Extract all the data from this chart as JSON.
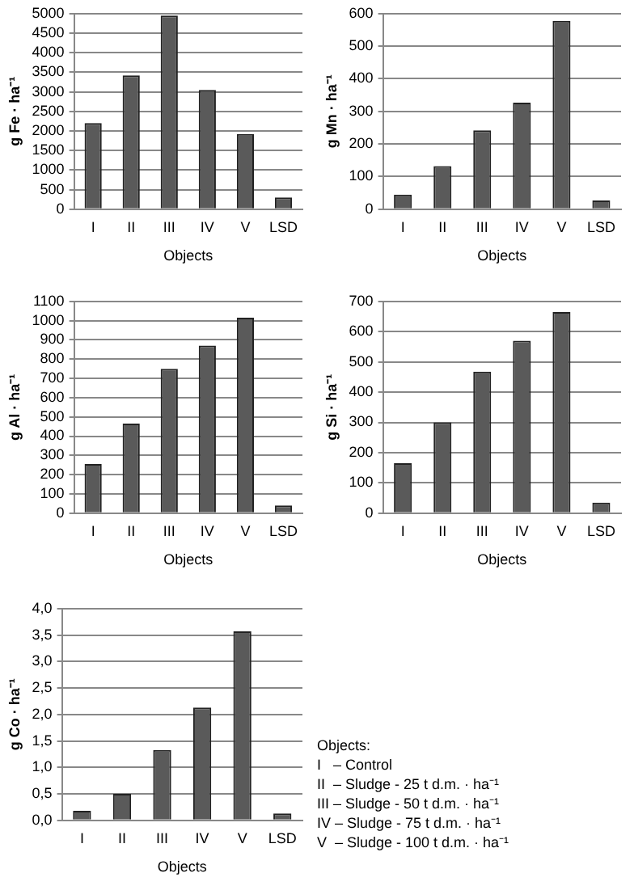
{
  "chart_data": [
    {
      "type": "bar",
      "categories": [
        "I",
        "II",
        "III",
        "IV",
        "V",
        "LSD"
      ],
      "values": [
        2200,
        3420,
        4950,
        3050,
        1920,
        300
      ],
      "color": "#5a5a5a",
      "xlabel": "Objects",
      "ylabel": "g Fe · ha⁻¹",
      "ylim": [
        0,
        5000
      ],
      "yticks": [
        0,
        500,
        1000,
        1500,
        2000,
        2500,
        3000,
        3500,
        4000,
        4500,
        5000
      ],
      "grid": "y",
      "legend": false
    },
    {
      "type": "bar",
      "categories": [
        "I",
        "II",
        "III",
        "IV",
        "V",
        "LSD"
      ],
      "values": [
        45,
        132,
        242,
        327,
        578,
        27
      ],
      "color": "#5a5a5a",
      "xlabel": "Objects",
      "ylabel": "g Mn · ha⁻¹",
      "ylim": [
        0,
        600
      ],
      "yticks": [
        0,
        100,
        200,
        300,
        400,
        500,
        600
      ],
      "grid": "y",
      "legend": false
    },
    {
      "type": "bar",
      "categories": [
        "I",
        "II",
        "III",
        "IV",
        "V",
        "LSD"
      ],
      "values": [
        255,
        465,
        750,
        870,
        1015,
        40
      ],
      "color": "#5a5a5a",
      "xlabel": "Objects",
      "ylabel": "g Al · ha⁻¹",
      "ylim": [
        0,
        1100
      ],
      "yticks": [
        0,
        100,
        200,
        300,
        400,
        500,
        600,
        700,
        800,
        900,
        1000,
        1100
      ],
      "grid": "y",
      "legend": false
    },
    {
      "type": "bar",
      "categories": [
        "I",
        "II",
        "III",
        "IV",
        "V",
        "LSD"
      ],
      "values": [
        165,
        300,
        468,
        570,
        665,
        35
      ],
      "color": "#5a5a5a",
      "xlabel": "Objects",
      "ylabel": "g Si · ha⁻¹",
      "ylim": [
        0,
        700
      ],
      "yticks": [
        0,
        100,
        200,
        300,
        400,
        500,
        600,
        700
      ],
      "grid": "y",
      "legend": false
    },
    {
      "type": "bar",
      "categories": [
        "I",
        "II",
        "III",
        "IV",
        "V",
        "LSD"
      ],
      "values": [
        0.18,
        0.5,
        1.33,
        2.13,
        3.57,
        0.13
      ],
      "color": "#5a5a5a",
      "xlabel": "Objects",
      "ylabel": "g Co · ha⁻¹",
      "ylim": [
        0,
        4
      ],
      "yticks": [
        {
          "value": 0,
          "label": "0,0"
        },
        {
          "value": 0.5,
          "label": "0,5"
        },
        {
          "value": 1,
          "label": "1,0"
        },
        {
          "value": 1.5,
          "label": "1,5"
        },
        {
          "value": 2,
          "label": "2,0"
        },
        {
          "value": 2.5,
          "label": "2,5"
        },
        {
          "value": 3,
          "label": "3,0"
        },
        {
          "value": 3.5,
          "label": "3,5"
        },
        {
          "value": 4,
          "label": "4,0"
        }
      ],
      "grid": "y",
      "legend": false
    },
    {
      "type": "other",
      "title": "Objects:",
      "annotations": [
        "I   – Control",
        "II  – Sludge - 25 t d.m. · ha⁻¹",
        "III – Sludge - 50 t d.m. · ha⁻¹",
        "IV – Sludge - 75 t d.m. · ha⁻¹",
        "V  – Sludge - 100 t d.m. · ha⁻¹"
      ]
    }
  ]
}
